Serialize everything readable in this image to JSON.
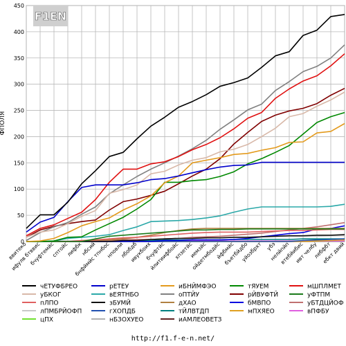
{
  "logo": {
    "text": "F1EN"
  },
  "footer": {
    "url": "http://f1.f-e-n.net/"
  },
  "chart_data": {
    "type": "line",
    "ylabel": "ФПОЛЯ",
    "ylim": [
      0,
      450
    ],
    "yticks": [
      0,
      50,
      100,
      150,
      200,
      250,
      300,
      350,
      400,
      450
    ],
    "grid": true,
    "legend_placement": "bottom",
    "x": [
      "ввитеко",
      "ифулв бтввис",
      "бчуфтемйс",
      "сптойс",
      "лифбк",
      "нбсий",
      "бнфймйс тпнбос",
      "нповли",
      "лбобдб",
      "ивукбоих",
      "бчуфтйс",
      "йлитиифбойс",
      "хпзетйс",
      "иемзйс",
      "ойдетмбодйс",
      "йфбмйс",
      "бъетбйдбо",
      "уйозбрхт",
      "убэ",
      "нелйпйп",
      "втебйибис",
      "ивт челбу",
      "лебфбт",
      "ебкт двий"
    ],
    "series": [
      {
        "name": "чЕТУФБРЕО",
        "color": "#000000",
        "values": [
          25,
          51,
          51,
          75,
          110,
          135,
          162,
          170,
          196,
          220,
          237,
          256,
          267,
          280,
          296,
          303,
          312,
          332,
          354,
          362,
          393,
          403,
          429,
          433
        ]
      },
      {
        "name": "рЕТЕУ",
        "color": "#0000cc",
        "values": [
          18,
          37,
          46,
          76,
          103,
          108,
          108,
          108,
          112,
          118,
          120,
          125,
          131,
          137,
          142,
          145,
          146,
          151,
          151,
          151,
          151,
          151,
          151,
          151
        ]
      },
      {
        "name": "иБНЙМФЭО",
        "color": "#e39a1c",
        "values": [
          0,
          1,
          6,
          17,
          30,
          38,
          45,
          60,
          72,
          87,
          112,
          125,
          150,
          155,
          160,
          166,
          168,
          174,
          179,
          189,
          190,
          207,
          210,
          225
        ]
      },
      {
        "name": "тЯУЕМ",
        "color": "#008800",
        "values": [
          0,
          0,
          1,
          8,
          9,
          22,
          34,
          46,
          62,
          80,
          113,
          113,
          116,
          118,
          124,
          133,
          148,
          158,
          170,
          183,
          205,
          227,
          238,
          246
        ]
      },
      {
        "name": "мШПЛМЕТ",
        "color": "#e01010",
        "values": [
          11,
          25,
          32,
          44,
          56,
          80,
          113,
          138,
          138,
          148,
          152,
          162,
          175,
          185,
          198,
          215,
          235,
          246,
          273,
          291,
          306,
          316,
          335,
          358
        ]
      },
      {
        "name": "уБКОГ",
        "color": "#d8b8a8",
        "values": [
          8,
          18,
          22,
          34,
          48,
          59,
          92,
          99,
          108,
          129,
          134,
          146,
          155,
          160,
          171,
          176,
          185,
          200,
          216,
          238,
          244,
          258,
          270,
          285
        ]
      },
      {
        "name": "вЕЯТНБО",
        "color": "#2aa8a8",
        "values": [
          0,
          0,
          1,
          6,
          8,
          10,
          13,
          21,
          28,
          38,
          39,
          40,
          42,
          45,
          49,
          56,
          62,
          66,
          66,
          66,
          66,
          66,
          67,
          71
        ]
      },
      {
        "name": "оПТЙУ",
        "color": "#808080",
        "values": [
          2,
          17,
          28,
          36,
          52,
          66,
          91,
          108,
          124,
          138,
          150,
          163,
          177,
          193,
          214,
          232,
          251,
          262,
          288,
          305,
          324,
          334,
          350,
          375
        ]
      },
      {
        "name": "рЙВУФТЙ",
        "color": "#800000",
        "values": [
          8,
          22,
          29,
          34,
          38,
          41,
          60,
          76,
          81,
          88,
          96,
          110,
          125,
          138,
          158,
          186,
          208,
          229,
          241,
          249,
          254,
          263,
          279,
          292
        ]
      },
      {
        "name": "уФТПМ",
        "color": "#1a7a1a",
        "values": [
          0,
          0,
          0,
          0,
          0,
          5,
          10,
          12,
          14,
          16,
          18,
          20,
          22,
          22,
          23,
          23,
          24,
          24,
          24,
          24,
          24,
          24,
          24,
          24
        ]
      },
      {
        "name": "пЛПО",
        "color": "#e06060",
        "values": [
          0,
          0,
          0,
          0,
          2,
          3,
          5,
          7,
          8,
          10,
          12,
          14,
          16,
          17,
          18,
          18,
          18,
          19,
          20,
          21,
          21,
          22,
          23,
          23
        ]
      },
      {
        "name": "зБУМЙ",
        "color": "#101010",
        "values": [
          0,
          0,
          0,
          0,
          0,
          0,
          0,
          2,
          2,
          4,
          5,
          6,
          6,
          7,
          7,
          8,
          8,
          9,
          10,
          11,
          11,
          12,
          12,
          13
        ]
      },
      {
        "name": "дХАО",
        "color": "#b08040",
        "values": [
          0,
          0,
          0,
          0,
          0,
          2,
          3,
          5,
          8,
          12,
          17,
          21,
          24,
          25,
          25,
          25,
          25,
          25,
          25,
          25,
          25,
          25,
          25,
          25
        ]
      },
      {
        "name": "бМВПО",
        "color": "#0000e0",
        "values": [
          0,
          0,
          0,
          0,
          0,
          0,
          0,
          0,
          0,
          0,
          2,
          2,
          3,
          3,
          3,
          4,
          6,
          9,
          12,
          15,
          17,
          24,
          25,
          30
        ]
      },
      {
        "name": "уБТДЦЙОФ",
        "color": "#c07070",
        "values": [
          0,
          0,
          0,
          0,
          1,
          1,
          2,
          3,
          4,
          4,
          5,
          6,
          8,
          9,
          10,
          12,
          14,
          16,
          19,
          22,
          25,
          28,
          32,
          36
        ]
      },
      {
        "name": "лПМБРЙОФП",
        "color": "#c8c8c8",
        "values": [
          0,
          0,
          1,
          1,
          2,
          2,
          3,
          3,
          3,
          4,
          5,
          6,
          6,
          7,
          7,
          8,
          8,
          9,
          10,
          10,
          10,
          10,
          11,
          11
        ]
      },
      {
        "name": "гХОПДБ",
        "color": "#2050b0",
        "values": [
          0,
          0,
          0,
          0,
          0,
          0,
          0,
          0,
          0,
          0,
          0,
          0,
          0,
          0,
          0,
          0,
          0,
          0,
          0,
          0,
          2,
          3,
          4,
          5
        ]
      },
      {
        "name": "тЙЛВТДП",
        "color": "#008080",
        "values": [
          0,
          0,
          0,
          0,
          0,
          1,
          1,
          2,
          2,
          2,
          3,
          3,
          3,
          3,
          3,
          4,
          4,
          4,
          4,
          4,
          5,
          5,
          5,
          5
        ]
      },
      {
        "name": "мПХЯЕО",
        "color": "#e0a020",
        "values": [
          0,
          0,
          0,
          0,
          0,
          0,
          0,
          0,
          0,
          0,
          0,
          0,
          0,
          0,
          0,
          0,
          0,
          0,
          0,
          0,
          0,
          1,
          2,
          3
        ]
      },
      {
        "name": "вПФБУ",
        "color": "#e060e0",
        "values": [
          0,
          0,
          0,
          0,
          0,
          0,
          0,
          1,
          1,
          1,
          1,
          1,
          1,
          1,
          1,
          1,
          1,
          1,
          1,
          1,
          1,
          1,
          1,
          1
        ]
      },
      {
        "name": "цПХ",
        "color": "#70e030",
        "values": [
          0,
          0,
          0,
          0,
          0,
          0,
          0,
          0,
          0,
          0,
          0,
          0,
          0,
          0,
          0,
          0,
          0,
          0,
          1,
          1,
          1,
          1,
          1,
          1
        ]
      },
      {
        "name": "нБЗОХУЕО",
        "color": "#b0b0b0",
        "values": [
          0,
          0,
          0,
          0,
          0,
          0,
          0,
          0,
          0,
          0,
          0,
          0,
          0,
          0,
          0,
          0,
          0,
          0,
          0,
          0,
          0,
          0,
          0,
          0
        ]
      },
      {
        "name": "иАМЛЕОВЕТЗ",
        "color": "#602020",
        "values": [
          0,
          0,
          0,
          0,
          0,
          0,
          0,
          0,
          0,
          0,
          0,
          0,
          0,
          0,
          0,
          0,
          0,
          0,
          0,
          0,
          0,
          0,
          0,
          0
        ]
      }
    ]
  }
}
